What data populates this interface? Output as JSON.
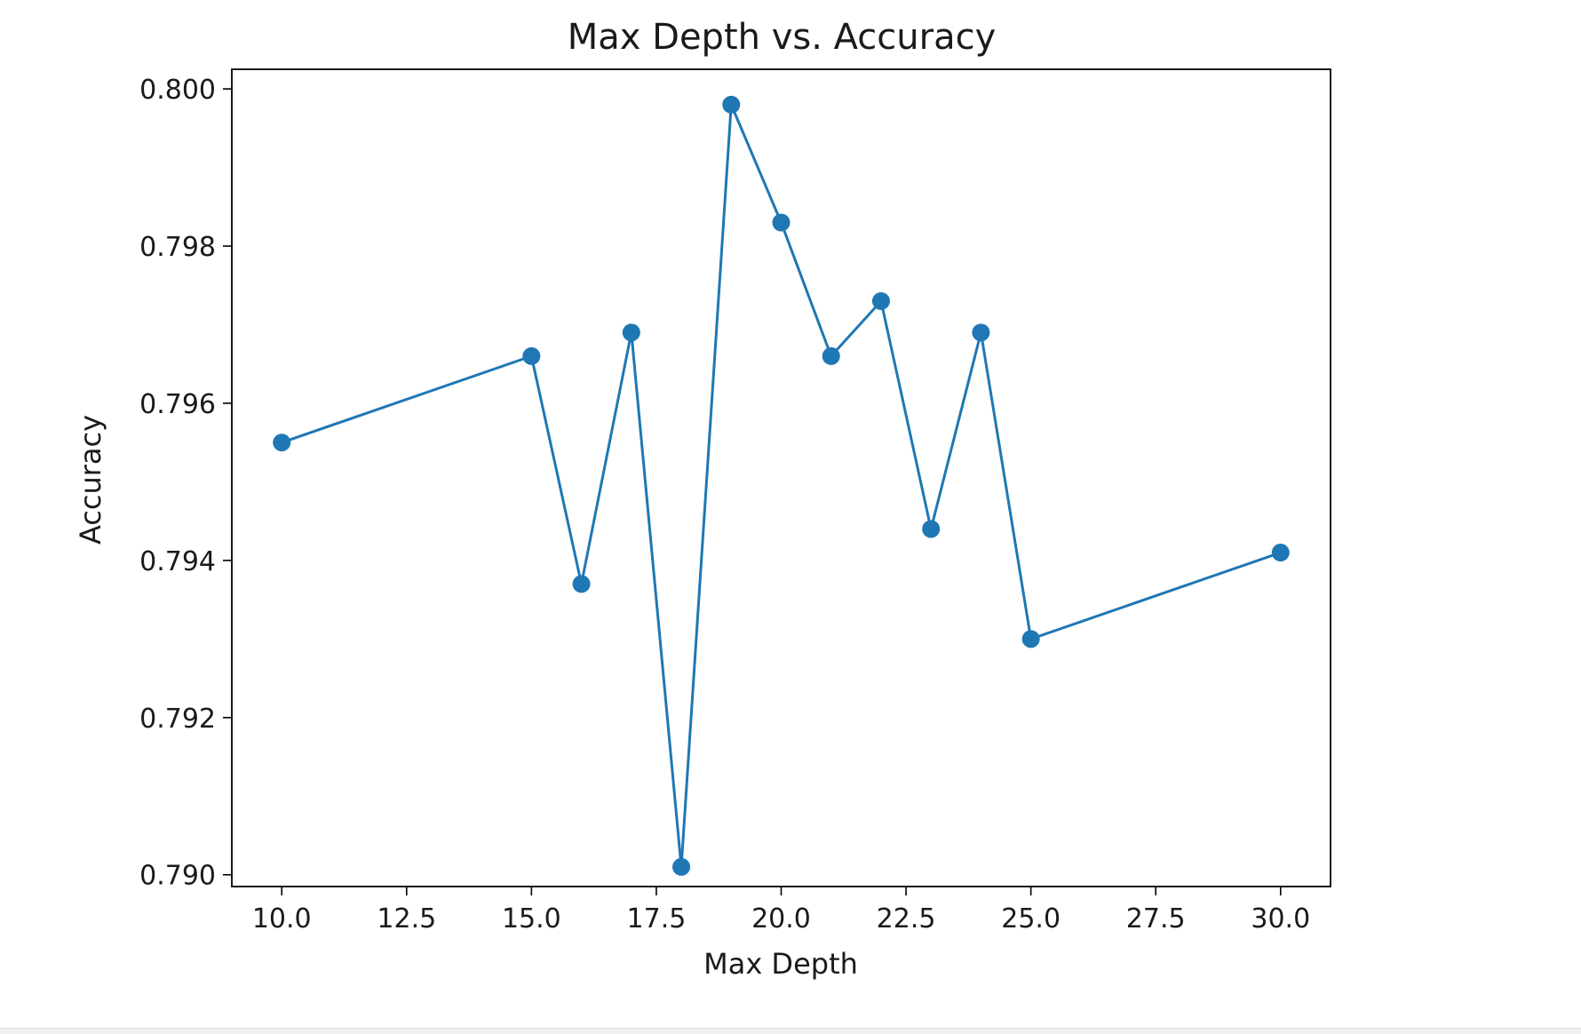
{
  "chart_data": {
    "type": "line",
    "title": "Max Depth vs. Accuracy",
    "xlabel": "Max Depth",
    "ylabel": "Accuracy",
    "xlim": [
      9.0,
      31.0
    ],
    "ylim": [
      0.78985,
      0.80025
    ],
    "xticks": [
      "10.0",
      "12.5",
      "15.0",
      "17.5",
      "20.0",
      "22.5",
      "25.0",
      "27.5",
      "30.0"
    ],
    "yticks": [
      "0.790",
      "0.792",
      "0.794",
      "0.796",
      "0.798",
      "0.800"
    ],
    "grid": false,
    "marker": "circle",
    "color": "#1f77b4",
    "series": [
      {
        "x": [
          10,
          15,
          16,
          17,
          18,
          19,
          20,
          21,
          22,
          23,
          24,
          25,
          30
        ],
        "y": [
          0.7955,
          0.7966,
          0.7937,
          0.7969,
          0.7901,
          0.7998,
          0.7983,
          0.7966,
          0.7973,
          0.7944,
          0.7969,
          0.793,
          0.7941
        ]
      }
    ]
  }
}
